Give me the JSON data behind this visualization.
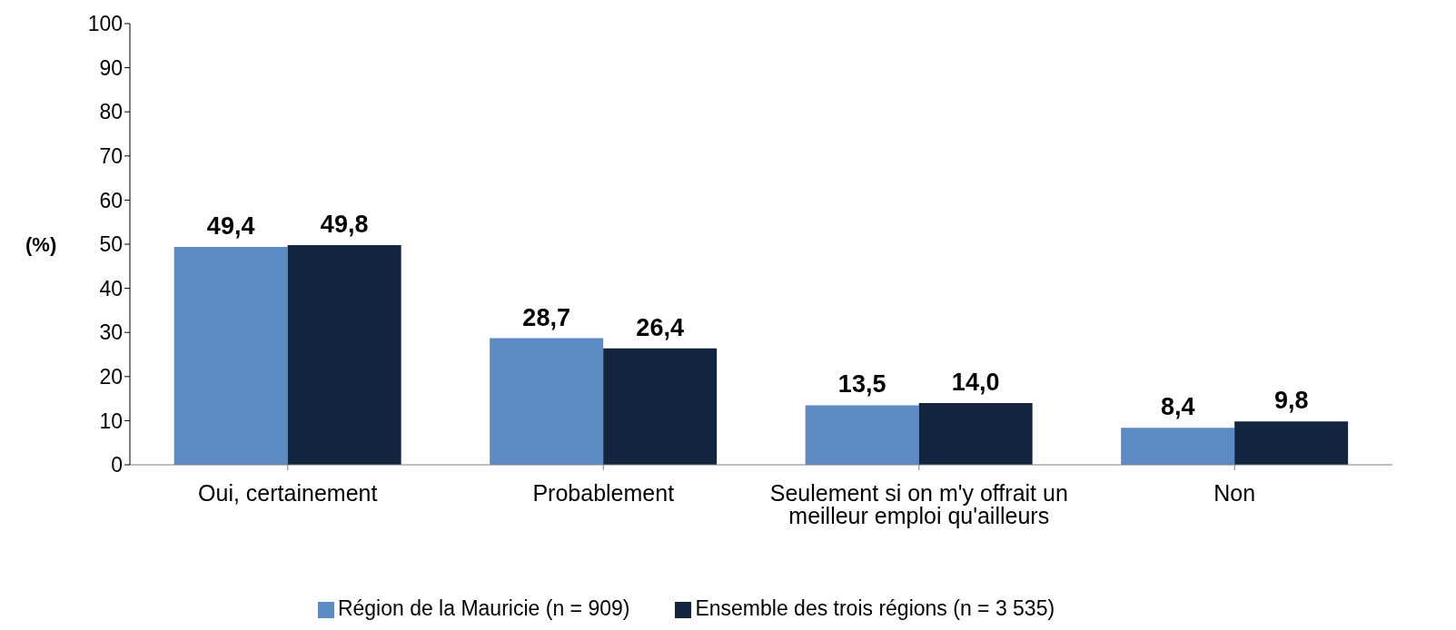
{
  "chart_data": {
    "type": "bar",
    "ylabel": "(%)",
    "categories": [
      "Oui, certainement",
      "Probablement",
      "Seulement si on m'y offrait un meilleur emploi qu'ailleurs",
      "Non"
    ],
    "series": [
      {
        "name": "Région de la Mauricie (n = 909)",
        "color": "#5b8ac5",
        "values": [
          49.4,
          28.7,
          13.5,
          8.4
        ],
        "value_labels": [
          "49,4",
          "28,7",
          "13,5",
          "8,4"
        ]
      },
      {
        "name": "Ensemble des trois régions (n = 3 535)",
        "color": "#13243f",
        "values": [
          49.8,
          26.4,
          14.0,
          9.8
        ],
        "value_labels": [
          "49,8",
          "26,4",
          "14,0",
          "9,8"
        ]
      }
    ],
    "ylim": [
      0,
      100
    ],
    "yticks": [
      0,
      10,
      20,
      30,
      40,
      50,
      60,
      70,
      80,
      90,
      100
    ],
    "grid": false,
    "legend": "bottom"
  }
}
